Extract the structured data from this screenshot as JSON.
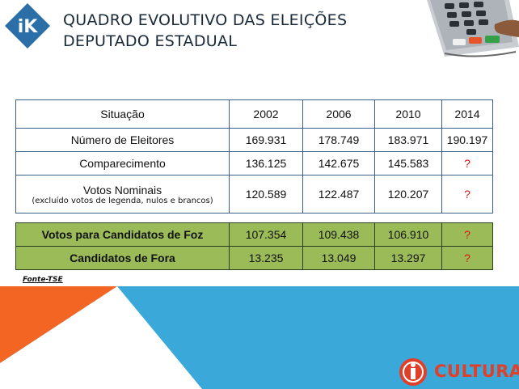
{
  "logo": {
    "text": "iK",
    "color": "#2a6fa8"
  },
  "title": {
    "line1": "QUADRO EVOLUTIVO DAS ELEIÇÕES",
    "line2": "DEPUTADO ESTADUAL"
  },
  "table": {
    "header": {
      "situacao": "Situação",
      "years": [
        "2002",
        "2006",
        "2010",
        "2014"
      ]
    },
    "rows": [
      {
        "label": "Número de Eleitores",
        "values": [
          "169.931",
          "178.749",
          "183.971",
          "190.197"
        ]
      },
      {
        "label": "Comparecimento",
        "values": [
          "136.125",
          "142.675",
          "145.583",
          "?"
        ]
      },
      {
        "label": "Votos Nominais",
        "note": "(excluído votos de legenda, nulos e brancos)",
        "values": [
          "120.589",
          "122.487",
          "120.207",
          "?"
        ]
      }
    ]
  },
  "green_table": {
    "rows": [
      {
        "label": "Votos para Candidatos de Foz",
        "values": [
          "107.354",
          "109.438",
          "106.910",
          "?"
        ]
      },
      {
        "label": "Candidatos de Fora",
        "values": [
          "13.235",
          "13.049",
          "13.297",
          "?"
        ]
      }
    ],
    "color": "#9bbb59"
  },
  "fonte": "Fonte-TSE",
  "brand": {
    "text": "CULTURA",
    "color": "#e0402a"
  },
  "colors": {
    "orange": "#f26522",
    "blue": "#3aa8d8",
    "table_border": "#3a5f8a",
    "question": "#e01010"
  }
}
